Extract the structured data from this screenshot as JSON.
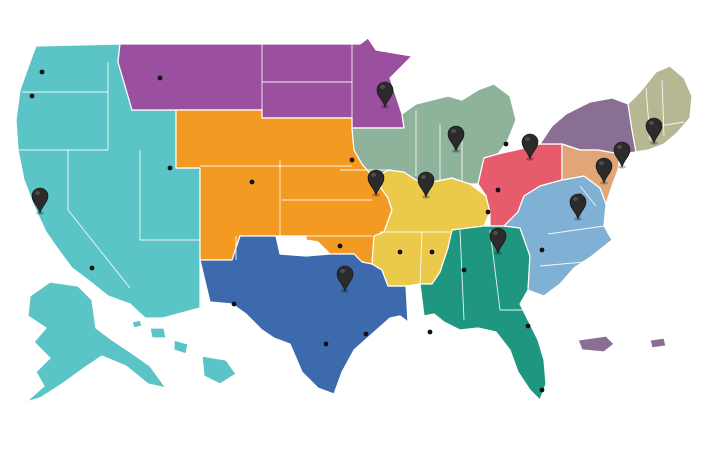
{
  "map": {
    "colors": {
      "pacific_west": "#5bc4c6",
      "northern_plains": "#9b4f9f",
      "central_plains": "#f39a22",
      "south_central": "#3d6aac",
      "great_lakes": "#8fb29b",
      "mid_south": "#ebc94b",
      "southeast": "#1f9680",
      "ohio_valley": "#e65c6c",
      "mid_atlantic": "#80b0d3",
      "northeast": "#8a6f95",
      "new_england": "#b5b892",
      "delaware_valley": "#e1a677",
      "puerto_rico": "#8a6f95",
      "pin": "#2b2b2b"
    },
    "regions": [
      {
        "id": "pacific_west",
        "icon": "region-shape"
      },
      {
        "id": "northern_plains",
        "icon": "region-shape"
      },
      {
        "id": "central_plains",
        "icon": "region-shape"
      },
      {
        "id": "south_central",
        "icon": "region-shape"
      },
      {
        "id": "great_lakes",
        "icon": "region-shape"
      },
      {
        "id": "mid_south",
        "icon": "region-shape"
      },
      {
        "id": "southeast",
        "icon": "region-shape"
      },
      {
        "id": "ohio_valley",
        "icon": "region-shape"
      },
      {
        "id": "mid_atlantic",
        "icon": "region-shape"
      },
      {
        "id": "northeast",
        "icon": "region-shape"
      },
      {
        "id": "new_england",
        "icon": "region-shape"
      },
      {
        "id": "delaware_valley",
        "icon": "region-shape"
      }
    ],
    "pin_icon": "map-pin-icon",
    "dot_icon": "city-dot-icon"
  }
}
